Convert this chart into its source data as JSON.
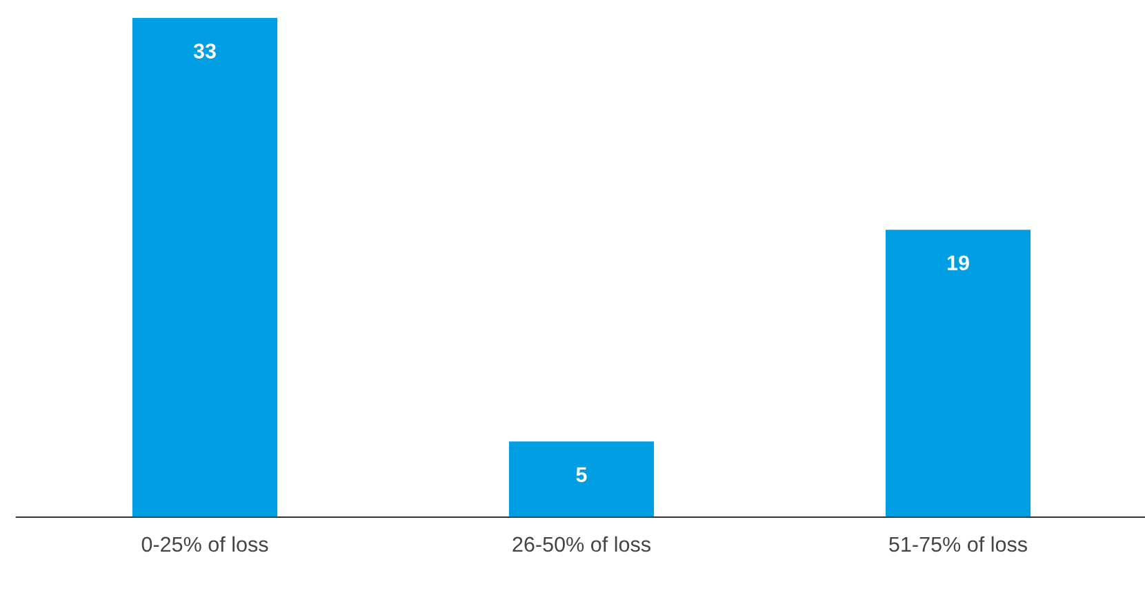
{
  "chart_data": {
    "type": "bar",
    "categories": [
      "0-25% of loss",
      "26-50% of loss",
      "51-75% of loss"
    ],
    "values": [
      33,
      5,
      19
    ],
    "color": "#009fe3",
    "data_labels": true,
    "grid": false,
    "legend": false
  }
}
